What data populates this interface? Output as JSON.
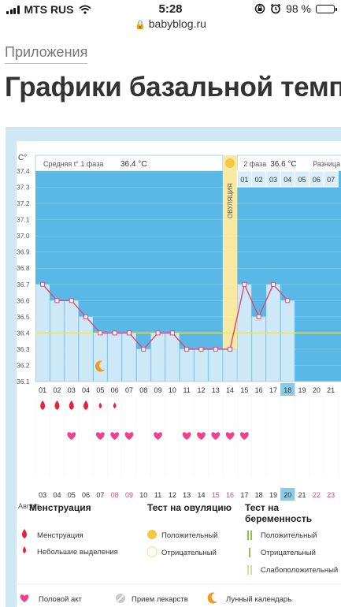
{
  "status": {
    "carrier": "MTS RUS",
    "time": "5:28",
    "battery": "98 %"
  },
  "url": "babyblog.ru",
  "nav": {
    "section_link": "Приложения"
  },
  "page_title": "Графики базальной темп",
  "chart_data": {
    "type": "line",
    "y_axis_label": "C°",
    "ylim": [
      36.1,
      37.4
    ],
    "y_ticks": [
      "37.4",
      "37.3",
      "37.2",
      "37.1",
      "37.0",
      "36.9",
      "36.8",
      "36.7",
      "36.6",
      "36.5",
      "36.4",
      "36.3",
      "36.2",
      "36.1"
    ],
    "cycle_days": [
      "01",
      "02",
      "03",
      "04",
      "05",
      "06",
      "07",
      "08",
      "09",
      "10",
      "11",
      "12",
      "13",
      "14",
      "15",
      "16",
      "17",
      "18",
      "19",
      "20",
      "21"
    ],
    "cycle_days_top": [
      "01",
      "02",
      "03",
      "04",
      "05",
      "06",
      "07"
    ],
    "temperatures": [
      36.7,
      36.6,
      36.6,
      36.5,
      36.4,
      36.4,
      36.4,
      36.3,
      36.4,
      36.4,
      36.3,
      36.3,
      36.3,
      36.3,
      36.7,
      36.5,
      36.7,
      36.6
    ],
    "coverline": 36.4,
    "ovulation_day": 14,
    "ovulation_label": "ОВУЛЯЦИЯ",
    "today_cycle_day": 18,
    "phase1_label": "Средняя t° 1 фаза",
    "phase1_value": "36.4 °C",
    "phase2_label": "2 фаза",
    "phase2_value": "36.6 °C",
    "difference_label": "Разница",
    "moon_day": 5,
    "menstruation_days": [
      1,
      2,
      3,
      4
    ],
    "spotting_days": [
      5,
      6
    ],
    "intercourse_days": [
      3,
      5,
      6,
      7,
      9,
      11,
      12,
      13,
      14,
      15
    ],
    "calendar_dates": [
      "03",
      "04",
      "05",
      "06",
      "07",
      "08",
      "09",
      "10",
      "11",
      "12",
      "13",
      "14",
      "15",
      "16",
      "17",
      "18",
      "19",
      "20",
      "21",
      "22",
      "23"
    ],
    "weekend_dates": [
      "08",
      "09",
      "15",
      "16",
      "22",
      "23"
    ],
    "today_date": "20",
    "month_label": "Август",
    "colors": {
      "phase1_bg": "#5ab8e6",
      "phase2_bg": "#5ab8e6",
      "bar": "#cde9f7",
      "line": "#e0457b",
      "coverline": "#e2e66a",
      "ovulation_band": "#f7e9a2",
      "ovulation_dot": "#f5c842",
      "today": "#8ccbe8",
      "drop": "#e3243b",
      "heart": "#f0418c",
      "weekend": "#e0457b",
      "moon": "#f29a1f",
      "test_mark": "#8bc34a"
    }
  },
  "legend": {
    "menstruation": {
      "heading": "Менструация",
      "items": [
        "Менструация",
        "Небольшие выделения"
      ]
    },
    "ovulation_test": {
      "heading": "Тест на овуляцию",
      "items": [
        "Положительный",
        "Отрицательный"
      ]
    },
    "pregnancy_test": {
      "heading": "Тест на беременность",
      "items": [
        "Положительный",
        "Отрицательный",
        "Слабоположительный"
      ]
    },
    "bottom": [
      "Половой акт",
      "Прием лекарств",
      "Лунный календарь"
    ]
  }
}
